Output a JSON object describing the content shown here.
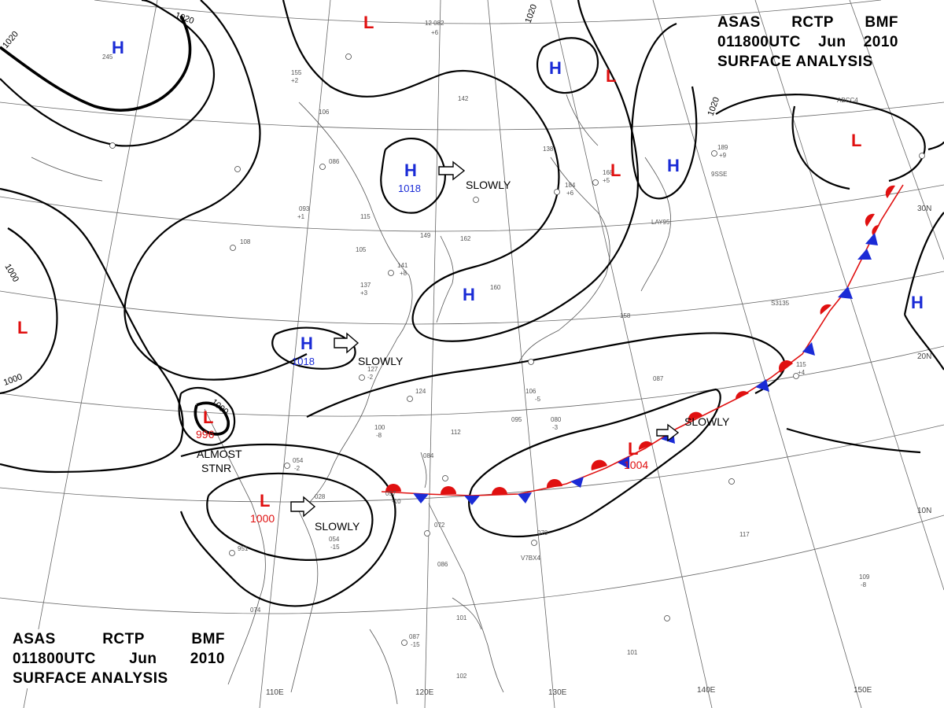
{
  "header": {
    "line1": [
      "ASAS",
      "RCTP",
      "BMF"
    ],
    "line2": [
      "011800UTC",
      "Jun",
      "2010"
    ],
    "line3": "SURFACE ANALYSIS"
  },
  "colors": {
    "high": "#1a2bd6",
    "low": "#e01010",
    "warm_front": "#e01010",
    "cold_front": "#1a2bd6",
    "isobar": "#000000",
    "coast": "#555555"
  },
  "pressure_systems": [
    {
      "type": "H",
      "name": "h1"
    },
    {
      "type": "L",
      "name": "l1"
    },
    {
      "type": "H",
      "name": "h2"
    },
    {
      "type": "L",
      "name": "l2"
    },
    {
      "type": "L",
      "name": "l3"
    },
    {
      "type": "H",
      "name": "h3"
    },
    {
      "type": "L",
      "name": "l4"
    },
    {
      "type": "H",
      "name": "h4",
      "value": "1018"
    },
    {
      "type": "H",
      "name": "h5"
    },
    {
      "type": "L",
      "name": "l5"
    },
    {
      "type": "H",
      "name": "h6",
      "value": "1018"
    },
    {
      "type": "L",
      "name": "l6",
      "value": "996"
    },
    {
      "type": "L",
      "name": "l7",
      "value": "1000"
    },
    {
      "type": "L",
      "name": "l8",
      "value": "1004"
    },
    {
      "type": "H",
      "name": "h7"
    }
  ],
  "movement_labels": [
    "SLOWLY",
    "SLOWLY",
    "SLOWLY",
    "SLOWLY",
    "ALMOST",
    "STNR"
  ],
  "isobar_labels": [
    "1020",
    "1020",
    "1020",
    "1020",
    "1000",
    "1000",
    "1000"
  ],
  "lon_labels": [
    "110E",
    "120E",
    "130E",
    "140E",
    "150E"
  ],
  "lat_labels": [
    "30N",
    "20N",
    "10N"
  ],
  "station_texts": [
    "12 082",
    "+6",
    "245",
    "155",
    "+2",
    "106",
    "142",
    "086",
    "093",
    "+1",
    "108",
    "149",
    "162",
    "115",
    "105",
    "137",
    "+3",
    "141",
    "+8",
    "160",
    "127",
    "-2",
    "124",
    "106",
    "087",
    "095",
    "112",
    "084",
    "054",
    "-2",
    "057",
    "-10",
    "072",
    "086",
    "101",
    "087",
    "-15",
    "102",
    "074",
    "951",
    "028",
    "054",
    "-15",
    "070",
    "117",
    "109",
    "-8",
    "101",
    "138",
    "184",
    "+6",
    "168",
    "+5",
    "189",
    "+9",
    "158",
    "-5",
    "100",
    "-8",
    "080",
    "-3",
    "V7BX4",
    "ABCC4",
    "9SSE",
    "LAY95",
    "S3135",
    "115",
    "+4"
  ]
}
